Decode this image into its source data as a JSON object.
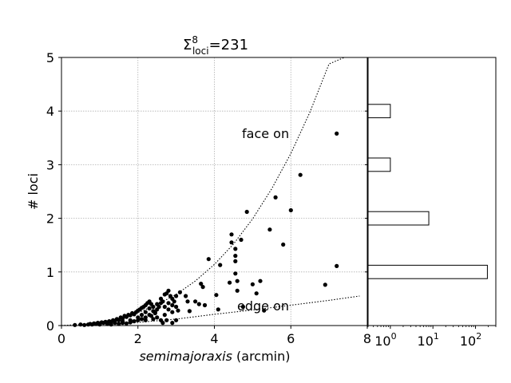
{
  "chart_data": [
    {
      "type": "scatter",
      "title": {
        "symbol": "Σ",
        "superscript": "8",
        "subscript": "loci",
        "value": "=231"
      },
      "xlabel": {
        "italic": "semimajoraxis",
        "unit": " (arcmin)"
      },
      "ylabel": "# loci",
      "xlim": [
        0,
        8
      ],
      "ylim": [
        0,
        5
      ],
      "xticks": [
        "0",
        "2",
        "4",
        "6",
        "8"
      ],
      "yticks": [
        "0",
        "1",
        "2",
        "3",
        "4",
        "5"
      ],
      "grid": true,
      "annotations": [
        "face on",
        "edge on"
      ],
      "curves": [
        {
          "name": "face on",
          "points": [
            [
              0,
              0
            ],
            [
              0.5,
              0.02
            ],
            [
              1,
              0.06
            ],
            [
              1.5,
              0.13
            ],
            [
              2,
              0.24
            ],
            [
              2.5,
              0.39
            ],
            [
              3,
              0.58
            ],
            [
              3.5,
              0.83
            ],
            [
              4,
              1.14
            ],
            [
              4.5,
              1.52
            ],
            [
              5,
              1.99
            ],
            [
              5.5,
              2.55
            ],
            [
              6,
              3.21
            ],
            [
              6.5,
              3.98
            ],
            [
              7,
              4.88
            ],
            [
              7.4,
              5.0
            ]
          ]
        },
        {
          "name": "edge on",
          "points": [
            [
              0,
              0
            ],
            [
              1,
              0.02
            ],
            [
              2,
              0.06
            ],
            [
              3,
              0.12
            ],
            [
              4,
              0.21
            ],
            [
              5,
              0.29
            ],
            [
              6,
              0.38
            ],
            [
              7,
              0.47
            ],
            [
              7.8,
              0.55
            ]
          ]
        }
      ],
      "points": [
        [
          0.35,
          0.01
        ],
        [
          0.5,
          0.02
        ],
        [
          0.6,
          0.01
        ],
        [
          0.7,
          0.02
        ],
        [
          0.75,
          0.03
        ],
        [
          0.8,
          0.02
        ],
        [
          0.85,
          0.04
        ],
        [
          0.9,
          0.03
        ],
        [
          0.95,
          0.05
        ],
        [
          1.0,
          0.04
        ],
        [
          1.05,
          0.06
        ],
        [
          1.1,
          0.05
        ],
        [
          1.15,
          0.07
        ],
        [
          1.2,
          0.06
        ],
        [
          1.25,
          0.08
        ],
        [
          1.3,
          0.07
        ],
        [
          1.35,
          0.1
        ],
        [
          1.4,
          0.09
        ],
        [
          1.45,
          0.12
        ],
        [
          1.5,
          0.1
        ],
        [
          1.55,
          0.15
        ],
        [
          1.6,
          0.13
        ],
        [
          1.65,
          0.18
        ],
        [
          1.7,
          0.16
        ],
        [
          1.75,
          0.2
        ],
        [
          1.8,
          0.19
        ],
        [
          1.85,
          0.23
        ],
        [
          1.9,
          0.21
        ],
        [
          1.95,
          0.25
        ],
        [
          2.0,
          0.28
        ],
        [
          2.05,
          0.3
        ],
        [
          2.1,
          0.33
        ],
        [
          2.15,
          0.35
        ],
        [
          2.2,
          0.38
        ],
        [
          2.25,
          0.42
        ],
        [
          2.3,
          0.45
        ],
        [
          2.35,
          0.4
        ],
        [
          2.4,
          0.27
        ],
        [
          2.45,
          0.23
        ],
        [
          2.5,
          0.3
        ],
        [
          2.55,
          0.35
        ],
        [
          2.6,
          0.5
        ],
        [
          2.65,
          0.45
        ],
        [
          2.7,
          0.58
        ],
        [
          2.75,
          0.6
        ],
        [
          2.8,
          0.65
        ],
        [
          2.85,
          0.55
        ],
        [
          2.9,
          0.5
        ],
        [
          2.95,
          0.45
        ],
        [
          3.0,
          0.55
        ],
        [
          2.3,
          0.2
        ],
        [
          2.5,
          0.15
        ],
        [
          2.6,
          0.1
        ],
        [
          2.7,
          0.2
        ],
        [
          2.8,
          0.3
        ],
        [
          2.9,
          0.25
        ],
        [
          3.0,
          0.35
        ],
        [
          3.05,
          0.28
        ],
        [
          2.2,
          0.15
        ],
        [
          2.4,
          0.12
        ],
        [
          3.1,
          0.62
        ],
        [
          3.25,
          0.55
        ],
        [
          3.3,
          0.45
        ],
        [
          3.35,
          0.27
        ],
        [
          3.5,
          0.45
        ],
        [
          3.6,
          0.4
        ],
        [
          3.65,
          0.78
        ],
        [
          3.7,
          0.72
        ],
        [
          3.75,
          0.38
        ],
        [
          3.85,
          1.24
        ],
        [
          4.05,
          0.57
        ],
        [
          4.1,
          0.3
        ],
        [
          4.15,
          1.13
        ],
        [
          4.4,
          0.8
        ],
        [
          4.45,
          1.7
        ],
        [
          4.45,
          1.55
        ],
        [
          4.55,
          1.43
        ],
        [
          4.55,
          1.3
        ],
        [
          4.55,
          1.2
        ],
        [
          4.55,
          0.97
        ],
        [
          4.6,
          0.65
        ],
        [
          4.6,
          0.83
        ],
        [
          4.7,
          1.6
        ],
        [
          4.75,
          0.35
        ],
        [
          4.85,
          2.12
        ],
        [
          5.0,
          0.77
        ],
        [
          5.1,
          0.6
        ],
        [
          5.2,
          0.83
        ],
        [
          5.3,
          0.28
        ],
        [
          5.45,
          1.79
        ],
        [
          5.6,
          2.39
        ],
        [
          5.8,
          1.51
        ],
        [
          6.0,
          2.15
        ],
        [
          6.25,
          2.81
        ],
        [
          6.9,
          0.76
        ],
        [
          7.2,
          3.58
        ],
        [
          7.2,
          1.11
        ],
        [
          1.3,
          0.02
        ],
        [
          1.5,
          0.03
        ],
        [
          1.6,
          0.05
        ],
        [
          1.7,
          0.04
        ],
        [
          1.8,
          0.06
        ],
        [
          1.9,
          0.08
        ],
        [
          2.0,
          0.1
        ],
        [
          2.1,
          0.12
        ],
        [
          2.2,
          0.25
        ],
        [
          2.3,
          0.32
        ],
        [
          2.4,
          0.35
        ],
        [
          2.5,
          0.4
        ],
        [
          2.6,
          0.42
        ],
        [
          2.7,
          0.35
        ],
        [
          2.8,
          0.42
        ],
        [
          2.9,
          0.38
        ],
        [
          3.0,
          0.1
        ],
        [
          2.9,
          0.05
        ],
        [
          2.75,
          0.1
        ],
        [
          2.65,
          0.05
        ],
        [
          1.0,
          0.02
        ],
        [
          1.2,
          0.03
        ],
        [
          1.4,
          0.05
        ],
        [
          1.6,
          0.08
        ],
        [
          1.8,
          0.1
        ],
        [
          2.0,
          0.15
        ],
        [
          2.1,
          0.2
        ],
        [
          2.2,
          0.1
        ],
        [
          2.35,
          0.18
        ],
        [
          2.45,
          0.25
        ]
      ]
    },
    {
      "type": "bar",
      "orientation": "horizontal",
      "xscale": "log",
      "xlim": [
        0.3,
        300
      ],
      "xticks": [
        {
          "base": "10",
          "exp": "0"
        },
        {
          "base": "10",
          "exp": "1"
        },
        {
          "base": "10",
          "exp": "2"
        }
      ],
      "bars": [
        {
          "center": 1,
          "width": 0.25,
          "value": 190
        },
        {
          "center": 2,
          "width": 0.25,
          "value": 8
        },
        {
          "center": 3,
          "width": 0.25,
          "value": 1
        },
        {
          "center": 4,
          "width": 0.25,
          "value": 1
        }
      ]
    }
  ]
}
